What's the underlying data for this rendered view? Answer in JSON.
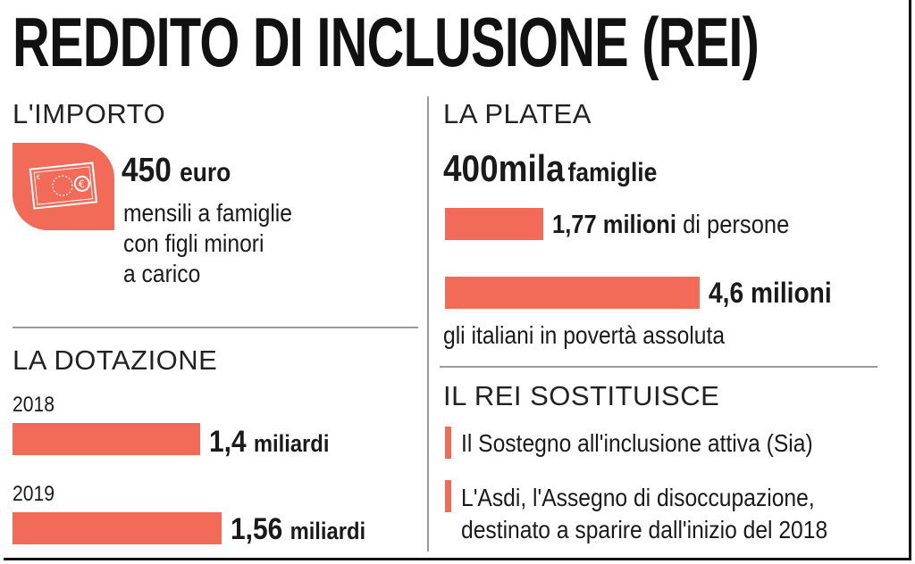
{
  "title": "REDDITO DI INCLUSIONE (REI)",
  "colors": {
    "accent": "#F26A58",
    "divider": "#9A9A9A",
    "text": "#1A1A1A"
  },
  "importo": {
    "heading": "L'IMPORTO",
    "icon": "banknote-euro-icon",
    "amount": "450",
    "unit": "euro",
    "lines": [
      "mensili a famiglie",
      "con figli minori",
      "a carico"
    ]
  },
  "dotazione": {
    "heading": "LA DOTAZIONE",
    "rows": [
      {
        "year": "2018",
        "value": "1,4",
        "unit": "miliardi",
        "amount": 1.4
      },
      {
        "year": "2019",
        "value": "1,56",
        "unit": "miliardi",
        "amount": 1.56
      }
    ]
  },
  "platea": {
    "heading": "LA PLATEA",
    "families_value": "400mila",
    "families_unit": "famiglie",
    "persons_value": "1,77 milioni",
    "persons_unit": "di persone",
    "persons_amount": 1.77,
    "poor_value": "4,6 milioni",
    "poor_amount": 4.6,
    "poor_caption": "gli italiani in povertà assoluta"
  },
  "sostituisce": {
    "heading": "IL REI SOSTITUISCE",
    "items": [
      {
        "lines": [
          "Il Sostegno all'inclusione attiva (Sia)"
        ]
      },
      {
        "lines": [
          "L'Asdi, l'Assegno di disoccupazione,",
          "destinato a sparire dall'inizio del 2018"
        ]
      }
    ]
  }
}
